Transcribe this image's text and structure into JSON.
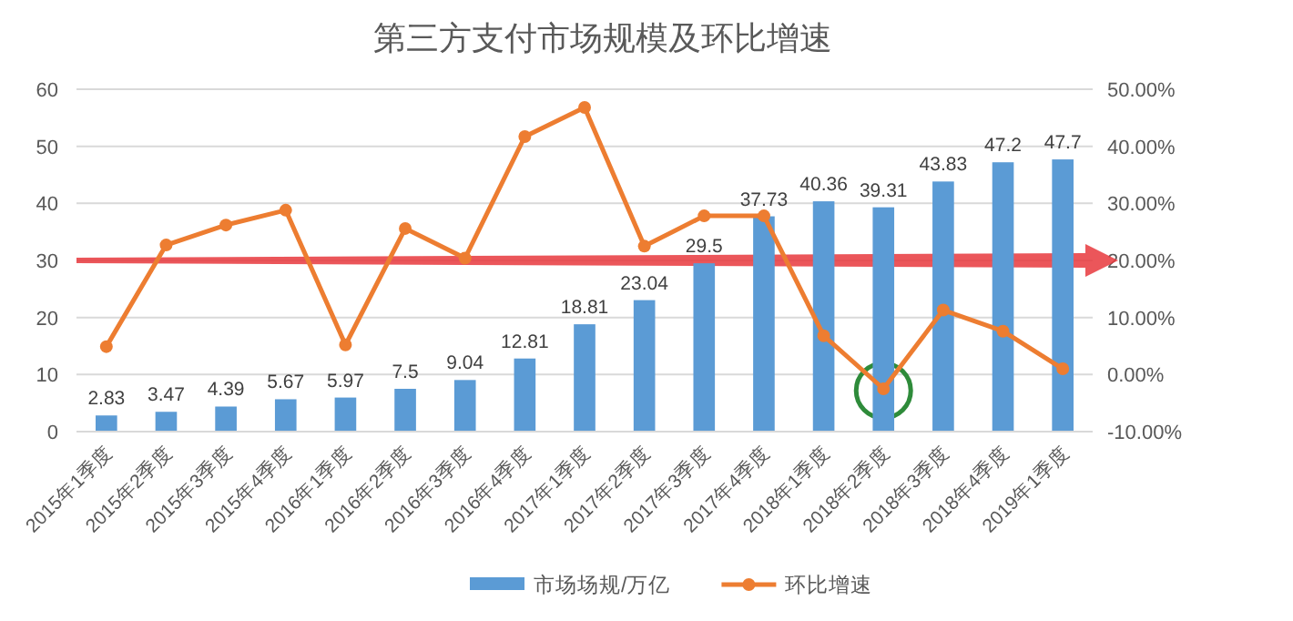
{
  "chart_data": {
    "type": "bar",
    "title": "第三方支付市场规模及环比增速",
    "categories": [
      "2015年1季度",
      "2015年2季度",
      "2015年3季度",
      "2015年4季度",
      "2016年1季度",
      "2016年2季度",
      "2016年3季度",
      "2016年4季度",
      "2017年1季度",
      "2017年2季度",
      "2017年3季度",
      "2017年4季度",
      "2018年1季度",
      "2018年2季度",
      "2018年3季度",
      "2018年4季度",
      "2019年1季度"
    ],
    "series": [
      {
        "name": "市场场规/万亿",
        "color": "#5b9bd5",
        "values": [
          2.83,
          3.47,
          4.39,
          5.67,
          5.97,
          7.5,
          9.04,
          12.81,
          18.81,
          23.04,
          29.5,
          37.73,
          40.36,
          39.31,
          43.83,
          47.2,
          47.7
        ],
        "value_labels": [
          "2.83",
          "3.47",
          "4.39",
          "5.67",
          "5.97",
          "7.5",
          "9.04",
          "12.81",
          "18.81",
          "23.04",
          "29.5",
          "37.73",
          "40.36",
          "39.31",
          "43.83",
          "47.2",
          "47.7"
        ]
      },
      {
        "name": "环比增速",
        "type": "line",
        "axis": "y2",
        "color": "#ed7d31",
        "marker": "circle",
        "values": [
          4.9,
          22.7,
          26.2,
          28.8,
          5.2,
          25.6,
          20.4,
          41.7,
          46.8,
          22.5,
          27.8,
          27.8,
          6.8,
          -2.5,
          11.3,
          7.6,
          1.0
        ]
      }
    ],
    "ylim": [
      0,
      60
    ],
    "yticks": [
      0,
      10,
      20,
      30,
      40,
      50,
      60
    ],
    "y2lim": [
      -10,
      50
    ],
    "y2ticks": [
      {
        "value": -10,
        "label": "-10.00%"
      },
      {
        "value": 0,
        "label": "0.00%"
      },
      {
        "value": 10,
        "label": "10.00%"
      },
      {
        "value": 20,
        "label": "20.00%"
      },
      {
        "value": 30,
        "label": "30.00%"
      },
      {
        "value": 40,
        "label": "40.00%"
      },
      {
        "value": 50,
        "label": "50.00%"
      }
    ],
    "grid": "y",
    "legend": "bottom"
  }
}
